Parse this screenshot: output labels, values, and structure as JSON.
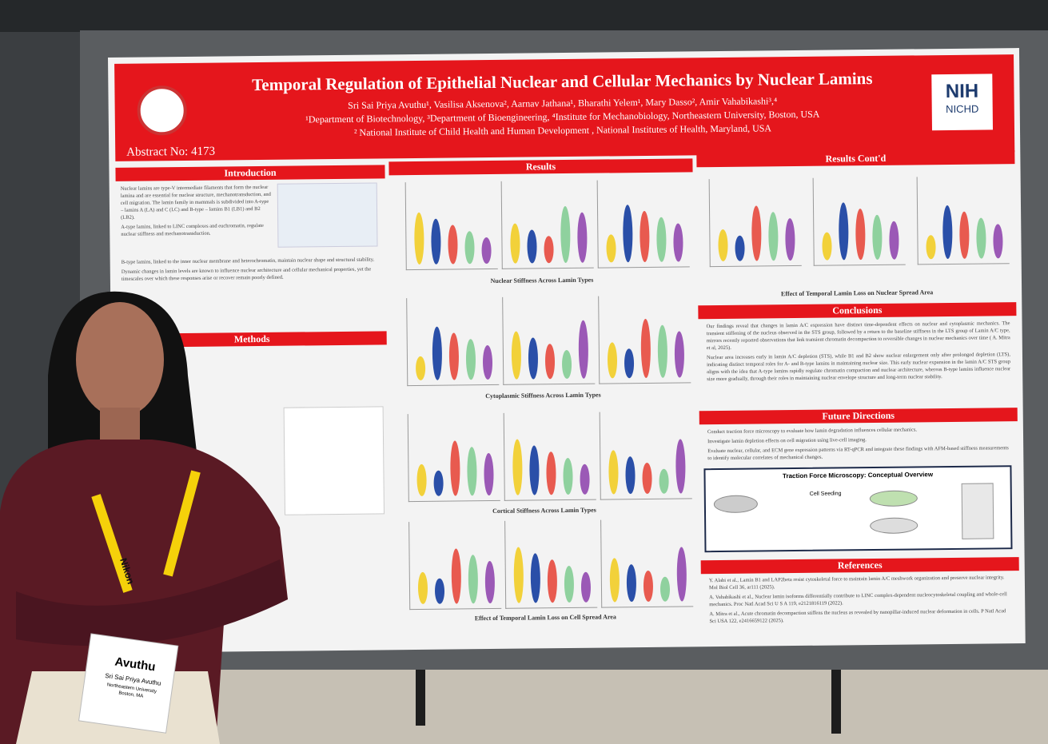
{
  "poster": {
    "title": "Temporal Regulation of Epithelial Nuclear and Cellular Mechanics by Nuclear Lamins",
    "authors": "Sri Sai Priya Avuthu¹, Vasilisa Aksenova², Aarnav Jathana¹, Bharathi Yelem¹, Mary Dasso², Amir Vahabikashi³,⁴",
    "affiliations": [
      "¹Department of Biotechnology, ³Department of Bioengineering, ⁴Institute for Mechanobiology, Northeastern University, Boston, USA",
      "² National Institute of Child Health and Human Development , National Institutes of Health, Maryland, USA"
    ],
    "abstract": "Abstract No: 4173",
    "logo": [
      "NIH",
      "NICHD"
    ],
    "introduction": {
      "heading": "Introduction",
      "bullets": [
        "Nuclear lamins are type-V intermediate filaments that form the nuclear lamina and are essential for nuclear structure, mechanotransduction, and cell migration. The lamin family in mammals is subdivided into A-type – lamins A (LA) and C (LC) and B-type – lamins B1 (LB1) and B2 (LB2).",
        "A-type lamins, linked to LINC complexes and euchromatin, regulate nuclear stiffness and mechanotransduction.",
        "B-type lamins, linked to the inner nuclear membrane and heterochromatin, maintain nuclear shape and structural stability.",
        "Dynamic changes in lamin levels are known to influence nuclear architecture and cellular mechanical properties, yet the timescales over which these responses arise or recover remain poorly defined."
      ]
    },
    "methods": {
      "heading": "Methods"
    },
    "results": {
      "heading": "Results",
      "captions": [
        "Nuclear Stiffness Across Lamin Types",
        "Cytoplasmic Stiffness Across Lamin Types",
        "Cortical Stiffness Across Lamin Types",
        "Effect of Temporal Lamin Loss on Cell Spread Area"
      ]
    },
    "results_contd": {
      "heading": "Results Cont'd",
      "caption": "Effect of Temporal Lamin Loss on Nuclear Spread Area"
    },
    "conclusions": {
      "heading": "Conclusions",
      "bullets": [
        "Our findings reveal that changes in lamin A/C expression have distinct time-dependent effects on nuclear and cytoplasmic mechanics. The transient stiffening of the nucleus observed in the STS group, followed by a return to the baseline stiffness in the LTS group of Lamin A/C type, mirrors recently reported observations that link transient chromatin decompaction to reversible changes in nuclear mechanics over time ( A. Mitra et al, 2025).",
        "Nuclear area increases early in lamin A/C depletion (STS), while B1 and B2 show nuclear enlargement only after prolonged depletion (LTS), indicating distinct temporal roles for A- and B-type lamins in maintaining nuclear size. This early nuclear expansion in the lamin A/C STS group aligns with the idea that A-type lamins rapidly regulate chromatin compaction and nuclear architecture, whereas B-type lamins influence nuclear size more gradually, through their roles in maintaining nuclear envelope structure and long-term nuclear stability."
      ]
    },
    "future": {
      "heading": "Future Directions",
      "bullets": [
        "Conduct traction force microscopy to evaluate how lamin degradation influences cellular mechanics.",
        "Investigate lamin depletion effects on cell migration using live-cell imaging.",
        "Evaluate nuclear, cellular, and ECM gene expression patterns via RT-qPCR and integrate these findings with AFM-based stiffness measurements to identify molecular correlates of mechanical changes."
      ],
      "figure_title": "Traction Force Microscopy: Conceptual Overview",
      "figure_label": "Cell Seeding"
    },
    "references": {
      "heading": "References",
      "items": [
        "Y. Alabi et al., Lamin B1 and LAP2beta resist cytoskeletal force to maintain lamin A/C meshwork organization and preserve nuclear integrity. Mol Biol Cell 36, ar111 (2025).",
        "A. Vahabikashi et al., Nuclear lamin isoforms differentially contribute to LINC complex-dependent nucleocytoskeletal coupling and whole-cell mechanics. Proc Natl Acad Sci U S A 119, e2121816119 (2022).",
        "A. Mitra et al., Acute chromatin decompaction stiffens the nucleus as revealed by nanopillar-induced nuclear deformation in cells. P Natl Acad Sci USA 122, e2416659122 (2025)."
      ]
    }
  },
  "badge": {
    "name": "Avuthu",
    "full_name": "Sri Sai Priya Avuthu",
    "affiliation": "Northeastern University",
    "city": "Boston, MA"
  },
  "lanyard": "Nikon"
}
